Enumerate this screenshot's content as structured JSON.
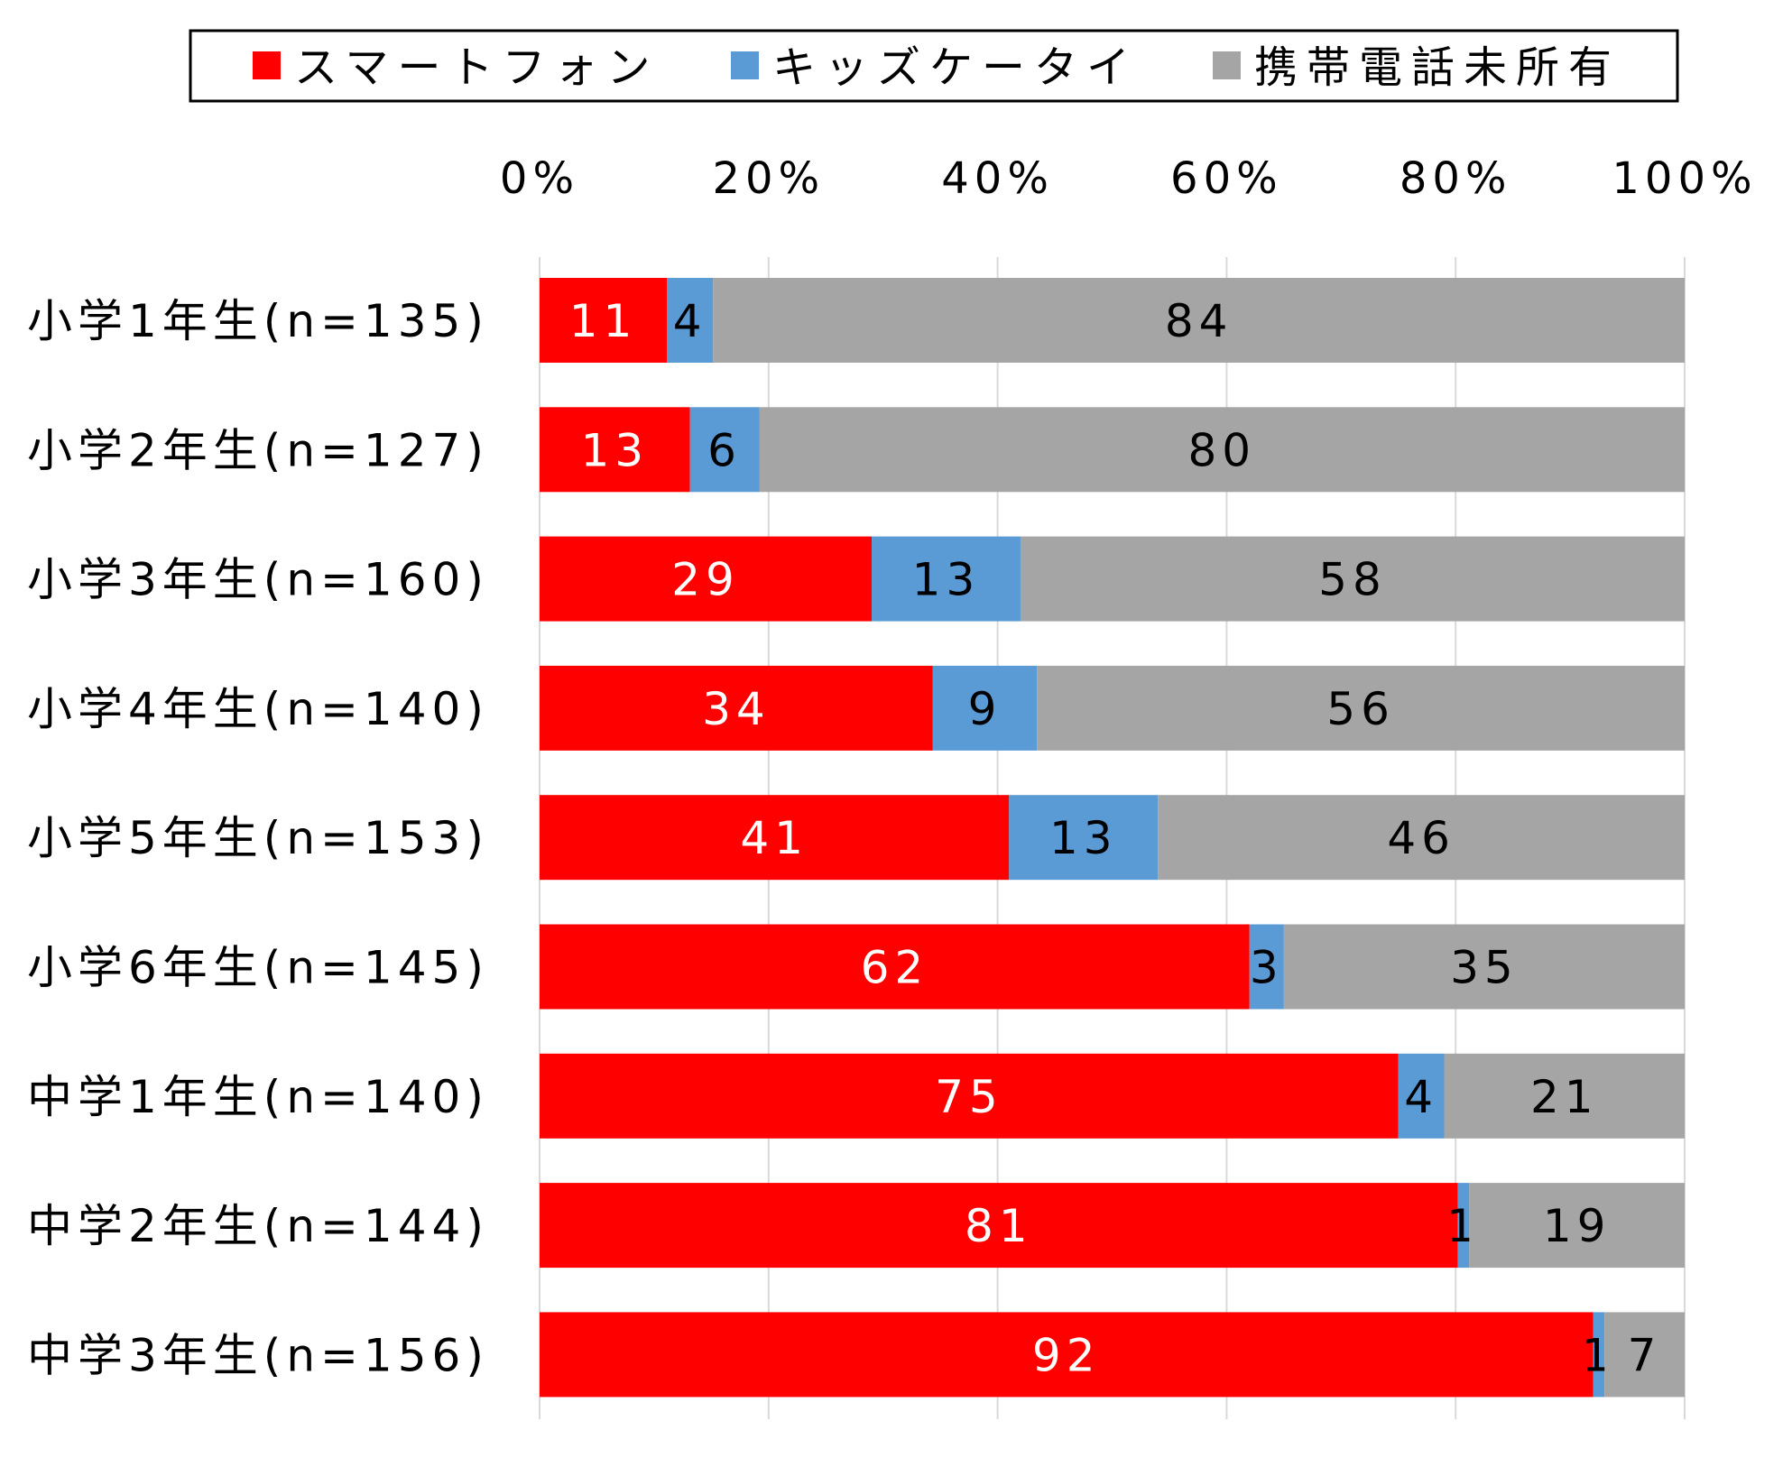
{
  "chart_data": {
    "type": "bar",
    "orientation": "horizontal",
    "stacked": "percent",
    "title": "",
    "xlabel": "",
    "ylabel": "",
    "xlim": [
      0,
      100
    ],
    "x_ticks": [
      "0%",
      "20%",
      "40%",
      "60%",
      "80%",
      "100%"
    ],
    "x_tick_values": [
      0,
      20,
      40,
      60,
      80,
      100
    ],
    "x_axis_position": "top",
    "grid": "vertical",
    "legend_position": "top",
    "categories": [
      "小学1年生(n=135)",
      "小学2年生(n=127)",
      "小学3年生(n=160)",
      "小学4年生(n=140)",
      "小学5年生(n=153)",
      "小学6年生(n=145)",
      "中学1年生(n=140)",
      "中学2年生(n=144)",
      "中学3年生(n=156)"
    ],
    "series": [
      {
        "name": "スマートフォン",
        "color": "#ff0000",
        "label_color": "#ffffff",
        "values": [
          11,
          13,
          29,
          34,
          41,
          62,
          75,
          81,
          92
        ]
      },
      {
        "name": "キッズケータイ",
        "color": "#5b9bd5",
        "label_color": "#000000",
        "values": [
          4,
          6,
          13,
          9,
          13,
          3,
          4,
          1,
          1
        ]
      },
      {
        "name": "携帯電話未所有",
        "color": "#a5a5a5",
        "label_color": "#000000",
        "values": [
          84,
          80,
          58,
          56,
          46,
          35,
          21,
          19,
          7
        ]
      }
    ]
  }
}
